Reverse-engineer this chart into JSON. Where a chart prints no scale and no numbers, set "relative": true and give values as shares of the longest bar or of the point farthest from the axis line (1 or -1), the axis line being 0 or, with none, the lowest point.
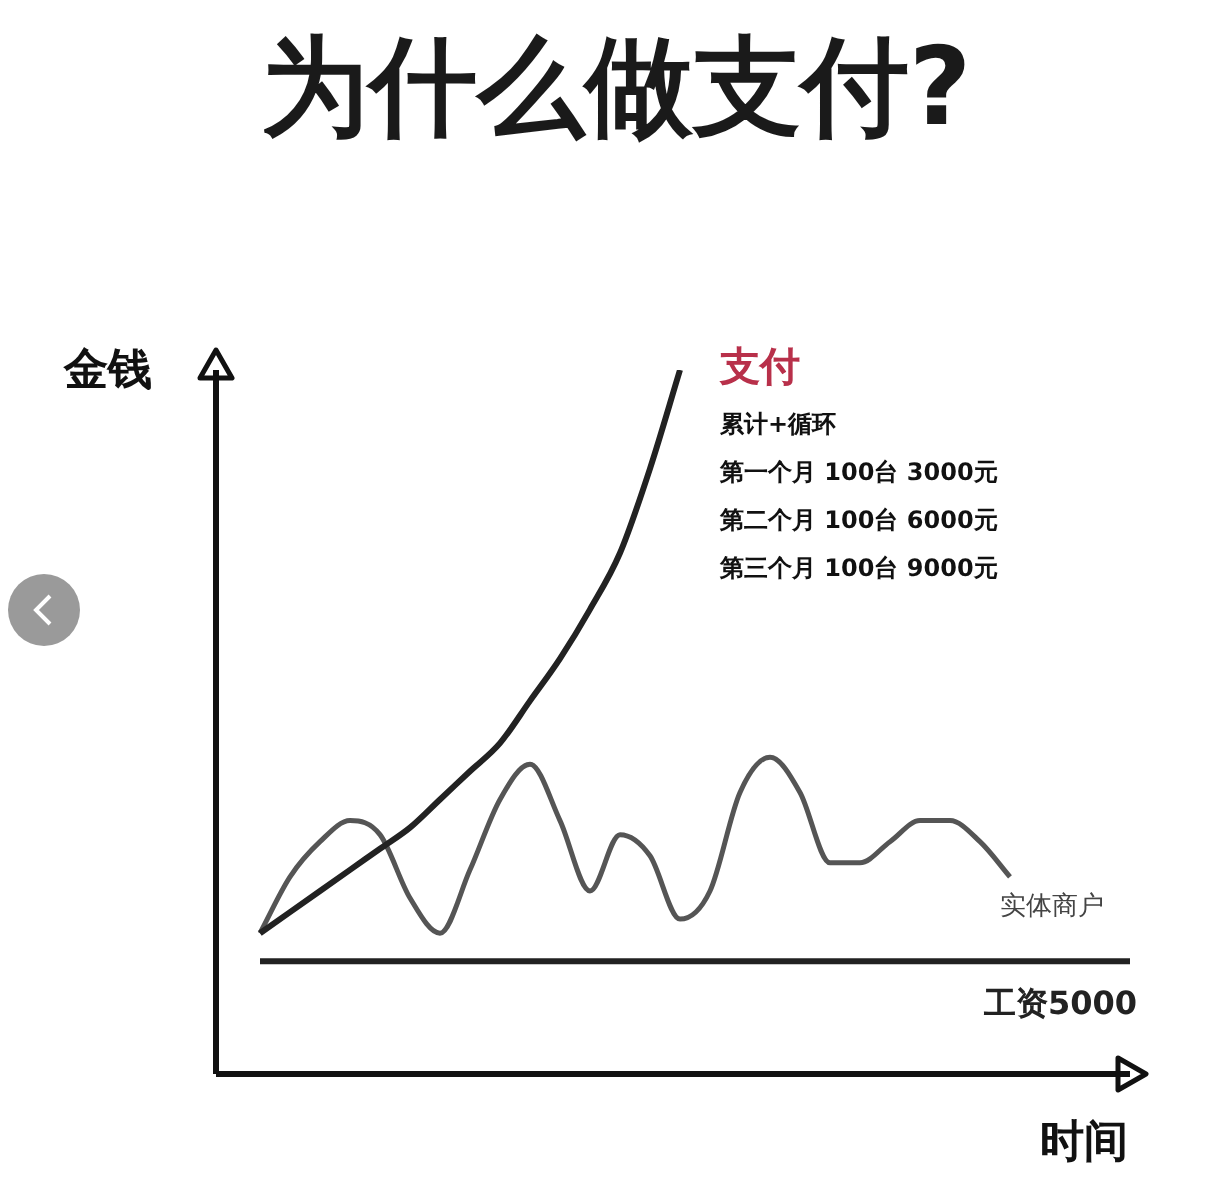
{
  "chart_data": {
    "type": "line",
    "title": "为什么做支付?",
    "xlabel": "时间",
    "ylabel": "金钱",
    "relative": true,
    "legend": false,
    "marker": "none",
    "categories": [
      null,
      null,
      null,
      null,
      null,
      null,
      null,
      null,
      null,
      null,
      null,
      null,
      null,
      null,
      null,
      null,
      null,
      null,
      null,
      null,
      null,
      null,
      null,
      null,
      null,
      null,
      null,
      null,
      null,
      null
    ],
    "series": [
      {
        "name": "支付",
        "color": "#222222",
        "values": [
          0.2,
          0.23,
          0.26,
          0.29,
          0.32,
          0.35,
          0.39,
          0.43,
          0.47,
          0.53,
          0.59,
          0.66,
          0.74,
          0.86,
          1,
          null,
          null,
          null,
          null,
          null,
          null,
          null,
          null,
          null,
          null,
          null,
          null,
          null,
          null,
          null
        ]
      },
      {
        "name": "实体商户",
        "color": "#555555",
        "values": [
          0.2,
          0.28,
          0.33,
          0.36,
          0.34,
          0.25,
          0.2,
          0.29,
          0.39,
          0.44,
          0.36,
          0.26,
          0.34,
          0.31,
          0.22,
          0.26,
          0.4,
          0.45,
          0.4,
          0.3,
          0.3,
          0.33,
          0.36,
          0.36,
          0.33,
          0.28,
          null,
          null,
          null,
          null
        ]
      },
      {
        "name": "工资5000",
        "color": "#222222",
        "values": [
          0.16,
          0.16,
          0.16,
          0.16,
          0.16,
          0.16,
          0.16,
          0.16,
          0.16,
          0.16,
          0.16,
          0.16,
          0.16,
          0.16,
          0.16,
          0.16,
          0.16,
          0.16,
          0.16,
          0.16,
          0.16,
          0.16,
          0.16,
          0.16,
          0.16,
          0.16,
          0.16,
          0.16,
          0.16,
          0.16
        ]
      }
    ],
    "annotations": [
      "累计+循环",
      "第一个月 100台 3000元",
      "第二个月 100台 6000元",
      "第三个月 100台 9000元"
    ]
  }
}
